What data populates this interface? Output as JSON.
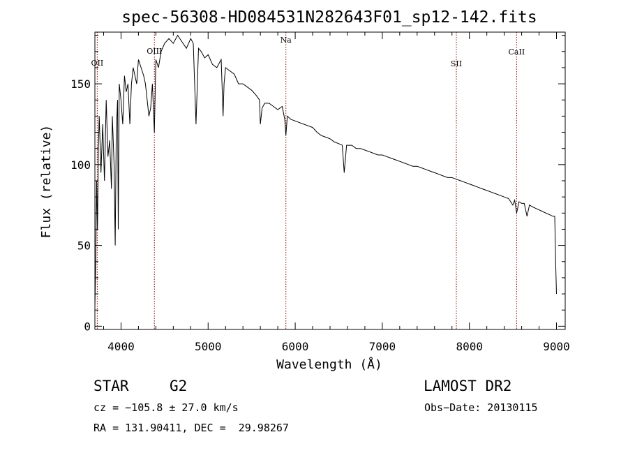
{
  "chart_data": {
    "type": "line",
    "title": "spec-56308-HD084531N282643F01_sp12-142.fits",
    "xlabel": "Wavelength (Å)",
    "ylabel": "Flux (relative)",
    "xlim": [
      3700,
      9100
    ],
    "ylim": [
      -2,
      182
    ],
    "x_ticks": [
      4000,
      5000,
      6000,
      7000,
      8000,
      9000
    ],
    "x_tick_labels": [
      "4000",
      "5000",
      "6000",
      "7000",
      "8000",
      "9000"
    ],
    "y_ticks": [
      0,
      50,
      100,
      150
    ],
    "y_tick_labels": [
      "0",
      "50",
      "100",
      "150"
    ],
    "grid": false,
    "series": [
      {
        "x": [
          3700,
          3710,
          3720,
          3730,
          3740,
          3750,
          3770,
          3790,
          3810,
          3830,
          3850,
          3870,
          3890,
          3900,
          3920,
          3933,
          3945,
          3960,
          3968,
          3980,
          4000,
          4020,
          4040,
          4060,
          4080,
          4101,
          4120,
          4140,
          4160,
          4180,
          4200,
          4230,
          4260,
          4280,
          4300,
          4320,
          4340,
          4360,
          4383,
          4400,
          4430,
          4460,
          4500,
          4550,
          4600,
          4650,
          4700,
          4750,
          4800,
          4830,
          4861,
          4890,
          4920,
          4960,
          5000,
          5050,
          5100,
          5150,
          5172,
          5183,
          5200,
          5250,
          5300,
          5350,
          5400,
          5450,
          5500,
          5550,
          5590,
          5600,
          5620,
          5650,
          5700,
          5750,
          5800,
          5850,
          5880,
          5893,
          5910,
          5950,
          6000,
          6050,
          6100,
          6150,
          6200,
          6250,
          6300,
          6350,
          6400,
          6450,
          6500,
          6540,
          6563,
          6590,
          6650,
          6700,
          6750,
          6800,
          6850,
          6900,
          6950,
          7000,
          7050,
          7100,
          7150,
          7200,
          7250,
          7300,
          7350,
          7400,
          7450,
          7500,
          7550,
          7600,
          7650,
          7700,
          7750,
          7800,
          7850,
          7900,
          7950,
          8000,
          8050,
          8100,
          8150,
          8200,
          8250,
          8300,
          8350,
          8400,
          8450,
          8498,
          8520,
          8542,
          8570,
          8600,
          8630,
          8662,
          8690,
          8720,
          8760,
          8800,
          8840,
          8880,
          8920,
          8960,
          8980,
          8990,
          9000
        ],
        "y": [
          12,
          40,
          90,
          60,
          110,
          130,
          95,
          125,
          90,
          140,
          105,
          115,
          85,
          130,
          100,
          50,
          120,
          140,
          60,
          150,
          140,
          125,
          155,
          145,
          150,
          125,
          150,
          160,
          155,
          150,
          165,
          160,
          155,
          150,
          140,
          130,
          135,
          150,
          120,
          165,
          160,
          170,
          175,
          178,
          175,
          180,
          176,
          172,
          178,
          175,
          125,
          172,
          170,
          166,
          168,
          162,
          160,
          165,
          130,
          150,
          160,
          158,
          156,
          150,
          150,
          148,
          146,
          143,
          140,
          125,
          135,
          138,
          138,
          136,
          134,
          136,
          128,
          118,
          130,
          128,
          127,
          126,
          125,
          124,
          123,
          120,
          118,
          117,
          116,
          114,
          113,
          112,
          95,
          112,
          112,
          110,
          110,
          109,
          108,
          107,
          106,
          106,
          105,
          104,
          103,
          102,
          101,
          100,
          99,
          99,
          98,
          97,
          96,
          95,
          94,
          93,
          92,
          92,
          91,
          90,
          89,
          88,
          87,
          86,
          85,
          84,
          83,
          82,
          81,
          80,
          79,
          75,
          78,
          70,
          77,
          76,
          76,
          68,
          75,
          74,
          73,
          72,
          71,
          70,
          69,
          68,
          68,
          40,
          20
        ]
      }
    ],
    "annotations": [
      {
        "label": "OII",
        "x": 3727
      },
      {
        "label": "OIII",
        "x": 4383
      },
      {
        "label": "Na",
        "x": 5893
      },
      {
        "label": "SII",
        "x": 7850
      },
      {
        "label": "CaII",
        "x": 8542
      }
    ]
  },
  "info": {
    "object_class": "STAR",
    "subclass": "G2",
    "survey": "LAMOST DR2",
    "cz": "cz = −105.8 ± 27.0 km/s",
    "obs_date": "Obs−Date: 20130115",
    "radec": "RA = 131.90411, DEC =  29.98267"
  },
  "colors": {
    "spectrum": "#000000",
    "line_markers": "#8b0000",
    "axes": "#000000"
  }
}
